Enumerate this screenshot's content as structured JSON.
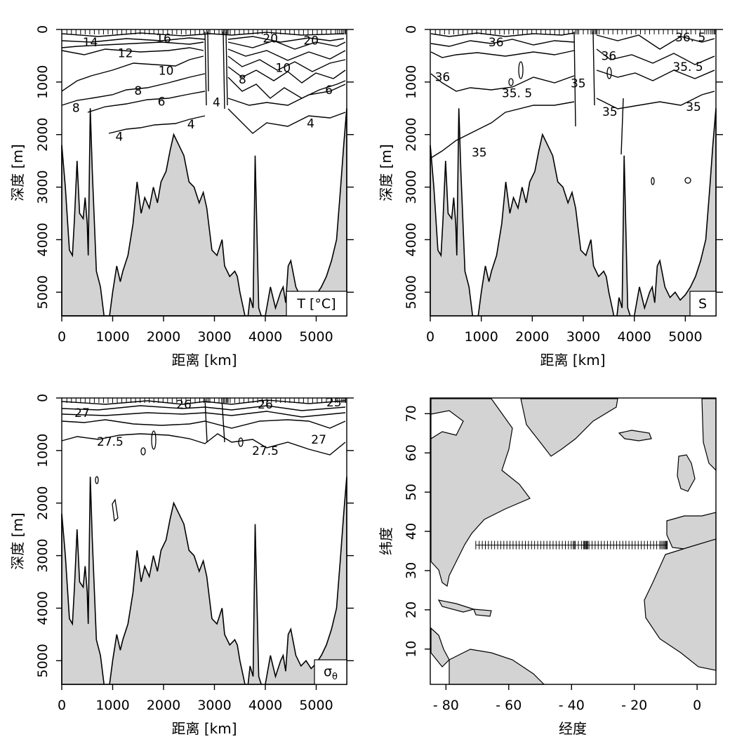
{
  "chart_data": [
    {
      "type": "contour",
      "panel": "temperature",
      "legend": "T [°C]",
      "xlabel": "距离 [km]",
      "ylabel": "深度 [m]",
      "xlim": [
        0,
        5600
      ],
      "ylim": [
        5450,
        0
      ],
      "xticks": [
        "0",
        "1000",
        "2000",
        "3000",
        "4000",
        "5000"
      ],
      "yticks": [
        "0",
        "1000",
        "2000",
        "3000",
        "4000",
        "5000"
      ],
      "contour_labels": [
        {
          "text": "14",
          "x": 560,
          "y": 240
        },
        {
          "text": "16",
          "x": 2000,
          "y": 170
        },
        {
          "text": "20",
          "x": 4100,
          "y": 170
        },
        {
          "text": "20",
          "x": 4900,
          "y": 210
        },
        {
          "text": "12",
          "x": 1250,
          "y": 450
        },
        {
          "text": "10",
          "x": 2050,
          "y": 780
        },
        {
          "text": "10",
          "x": 4350,
          "y": 730
        },
        {
          "text": "8",
          "x": 1500,
          "y": 1160
        },
        {
          "text": "8",
          "x": 3550,
          "y": 950
        },
        {
          "text": "6",
          "x": 1960,
          "y": 1370
        },
        {
          "text": "6",
          "x": 5250,
          "y": 1150
        },
        {
          "text": "8",
          "x": 280,
          "y": 1490
        },
        {
          "text": "4",
          "x": 1130,
          "y": 2040
        },
        {
          "text": "4",
          "x": 2540,
          "y": 1800
        },
        {
          "text": "4",
          "x": 3040,
          "y": 1380
        },
        {
          "text": "4",
          "x": 4890,
          "y": 1780
        }
      ]
    },
    {
      "type": "contour",
      "panel": "salinity",
      "legend": "S",
      "xlabel": "距离 [km]",
      "ylabel": "深度 [m]",
      "xlim": [
        0,
        5600
      ],
      "ylim": [
        5450,
        0
      ],
      "xticks": [
        "0",
        "1000",
        "2000",
        "3000",
        "4000",
        "5000"
      ],
      "yticks": [
        "0",
        "1000",
        "2000",
        "3000",
        "4000",
        "5000"
      ],
      "contour_labels": [
        {
          "text": "36",
          "x": 1290,
          "y": 240
        },
        {
          "text": "36. 5",
          "x": 5100,
          "y": 150
        },
        {
          "text": "36",
          "x": 3500,
          "y": 500
        },
        {
          "text": "35. 5",
          "x": 5050,
          "y": 710
        },
        {
          "text": "36",
          "x": 240,
          "y": 900
        },
        {
          "text": "35. 5",
          "x": 1700,
          "y": 1210
        },
        {
          "text": "35",
          "x": 2900,
          "y": 1020
        },
        {
          "text": "35",
          "x": 3520,
          "y": 1560
        },
        {
          "text": "35",
          "x": 5160,
          "y": 1470
        },
        {
          "text": "35",
          "x": 960,
          "y": 2340
        }
      ]
    },
    {
      "type": "contour",
      "panel": "potential-density",
      "legend": "σθ",
      "xlabel": "距离 [km]",
      "ylabel": "深度 [m]",
      "xlim": [
        0,
        5600
      ],
      "ylim": [
        5450,
        0
      ],
      "xticks": [
        "0",
        "1000",
        "2000",
        "3000",
        "4000",
        "5000"
      ],
      "yticks": [
        "0",
        "1000",
        "2000",
        "3000",
        "4000",
        "5000"
      ],
      "contour_labels": [
        {
          "text": "27",
          "x": 400,
          "y": 280
        },
        {
          "text": "26",
          "x": 2400,
          "y": 120
        },
        {
          "text": "26",
          "x": 4000,
          "y": 120
        },
        {
          "text": "25",
          "x": 5350,
          "y": 80
        },
        {
          "text": "27.5",
          "x": 950,
          "y": 830
        },
        {
          "text": "27.5",
          "x": 4000,
          "y": 1000
        },
        {
          "text": "27",
          "x": 5050,
          "y": 790
        }
      ]
    },
    {
      "type": "map",
      "panel": "section-location-map",
      "xlabel": "经度",
      "ylabel": "纬度",
      "xlim": [
        -85,
        6
      ],
      "ylim": [
        1,
        74
      ],
      "xticks": [
        {
          "value": -80,
          "label": "- 80"
        },
        {
          "value": -60,
          "label": "- 60"
        },
        {
          "value": -40,
          "label": "- 40"
        },
        {
          "value": -20,
          "label": "- 20"
        },
        {
          "value": 0,
          "label": "0"
        }
      ],
      "yticks": [
        "10",
        "20",
        "30",
        "40",
        "50",
        "60",
        "70"
      ],
      "section": {
        "lon_start": -70.5,
        "lon_end": -9.5,
        "lat": 36.5
      }
    }
  ],
  "bathymetry_km_m": [
    [
      0,
      5450
    ],
    [
      0,
      2200
    ],
    [
      70,
      3000
    ],
    [
      150,
      4200
    ],
    [
      210,
      4300
    ],
    [
      250,
      3600
    ],
    [
      300,
      2500
    ],
    [
      350,
      3500
    ],
    [
      420,
      3600
    ],
    [
      460,
      3200
    ],
    [
      500,
      3700
    ],
    [
      520,
      4300
    ],
    [
      560,
      1500
    ],
    [
      600,
      2700
    ],
    [
      680,
      4600
    ],
    [
      760,
      4900
    ],
    [
      830,
      5450
    ],
    [
      940,
      5450
    ],
    [
      1000,
      5000
    ],
    [
      1080,
      4500
    ],
    [
      1150,
      4800
    ],
    [
      1200,
      4600
    ],
    [
      1300,
      4300
    ],
    [
      1400,
      3700
    ],
    [
      1480,
      2900
    ],
    [
      1560,
      3500
    ],
    [
      1630,
      3200
    ],
    [
      1720,
      3400
    ],
    [
      1800,
      3000
    ],
    [
      1880,
      3300
    ],
    [
      1950,
      2900
    ],
    [
      2050,
      2700
    ],
    [
      2130,
      2300
    ],
    [
      2200,
      2000
    ],
    [
      2300,
      2200
    ],
    [
      2400,
      2400
    ],
    [
      2500,
      2900
    ],
    [
      2600,
      3000
    ],
    [
      2700,
      3300
    ],
    [
      2780,
      3100
    ],
    [
      2850,
      3400
    ],
    [
      2950,
      4200
    ],
    [
      3050,
      4300
    ],
    [
      3150,
      4000
    ],
    [
      3200,
      4500
    ],
    [
      3300,
      4700
    ],
    [
      3400,
      4600
    ],
    [
      3450,
      4700
    ],
    [
      3500,
      5000
    ],
    [
      3600,
      5450
    ],
    [
      3660,
      5450
    ],
    [
      3700,
      5100
    ],
    [
      3760,
      5300
    ],
    [
      3800,
      2400
    ],
    [
      3870,
      5300
    ],
    [
      3920,
      5450
    ],
    [
      4000,
      5450
    ],
    [
      4100,
      4900
    ],
    [
      4200,
      5300
    ],
    [
      4300,
      5000
    ],
    [
      4350,
      4900
    ],
    [
      4400,
      5200
    ],
    [
      4450,
      4500
    ],
    [
      4500,
      4400
    ],
    [
      4600,
      4900
    ],
    [
      4700,
      5100
    ],
    [
      4800,
      5000
    ],
    [
      4900,
      5150
    ],
    [
      5000,
      5050
    ],
    [
      5100,
      4900
    ],
    [
      5200,
      4700
    ],
    [
      5300,
      4400
    ],
    [
      5400,
      4000
    ],
    [
      5480,
      3000
    ],
    [
      5540,
      2200
    ],
    [
      5600,
      1500
    ],
    [
      5600,
      5450
    ]
  ],
  "station_km": [
    0,
    100,
    190,
    280,
    370,
    460,
    550,
    640,
    730,
    820,
    910,
    1000,
    1090,
    1180,
    1270,
    1360,
    1450,
    1540,
    1630,
    1720,
    1810,
    1900,
    1990,
    2080,
    2170,
    2260,
    2350,
    2440,
    2530,
    2620,
    2710,
    2790,
    2850,
    2880,
    2910,
    3000,
    3090,
    3150,
    3180,
    3200,
    3230,
    3250,
    3270,
    3310,
    3400,
    3490,
    3580,
    3670,
    3760,
    3850,
    3940,
    4030,
    4120,
    4210,
    4300,
    4390,
    4480,
    4570,
    4660,
    4750,
    4840,
    4930,
    5020,
    5110,
    5200,
    5290,
    5380,
    5420,
    5460,
    5500,
    5530,
    5560,
    5580,
    5600
  ]
}
